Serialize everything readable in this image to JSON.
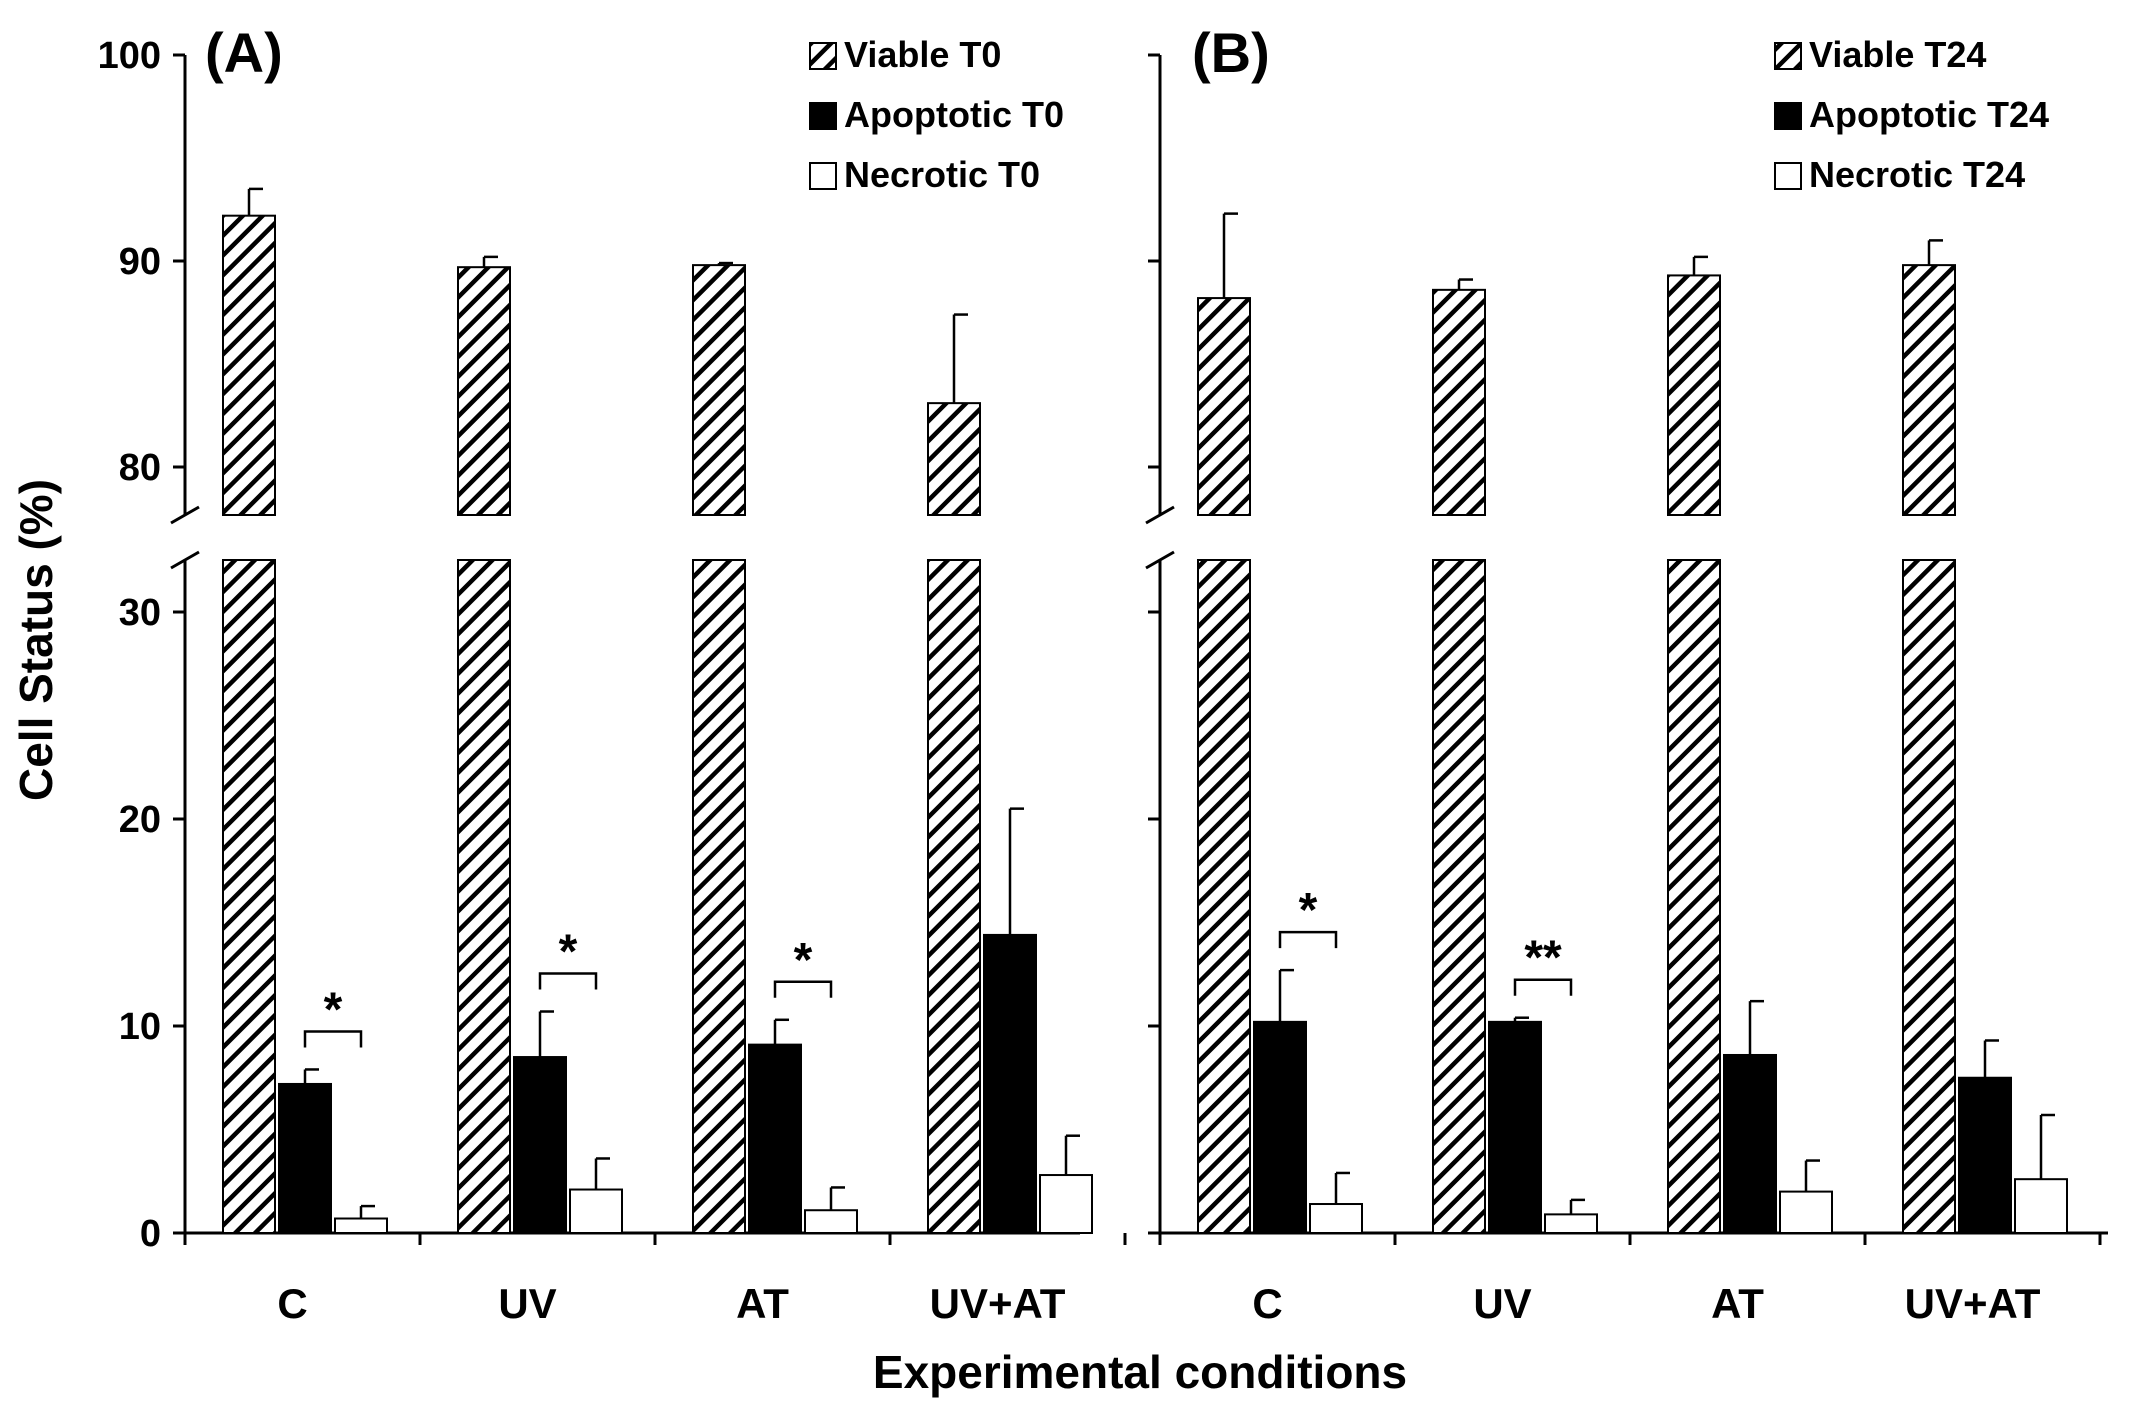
{
  "axes": {
    "ylabel": "Cell Status (%)",
    "xlabel": "Experimental conditions"
  },
  "colors": {
    "apoptotic": "#000000",
    "necrotic": "#ffffff",
    "viable_hatch": "#000000"
  },
  "chart_data": [
    {
      "type": "bar",
      "panel": "(A)",
      "categories": [
        "C",
        "UV",
        "AT",
        "UV+AT"
      ],
      "ylabel": "Cell Status (%)",
      "xlabel": "Experimental conditions",
      "y_break": {
        "lower": [
          0,
          32
        ],
        "upper": [
          77.5,
          100
        ]
      },
      "yticks": [
        "0",
        "10",
        "20",
        "30",
        "80",
        "90",
        "100"
      ],
      "legend_position": "top-right",
      "series": [
        {
          "name": "Viable T0",
          "pattern": "hatched",
          "values": [
            92.2,
            89.7,
            89.8,
            83.1
          ],
          "errors": [
            1.3,
            0.5,
            0.1,
            4.3
          ]
        },
        {
          "name": "Apoptotic T0",
          "pattern": "black",
          "values": [
            7.2,
            8.5,
            9.1,
            14.4
          ],
          "errors": [
            0.7,
            2.2,
            1.2,
            6.1
          ]
        },
        {
          "name": "Necrotic T0",
          "pattern": "white",
          "values": [
            0.7,
            2.1,
            1.1,
            2.8
          ],
          "errors": [
            0.6,
            1.5,
            1.1,
            1.9
          ]
        }
      ],
      "significance": [
        {
          "category": "C",
          "label": "*"
        },
        {
          "category": "UV",
          "label": "*"
        },
        {
          "category": "AT",
          "label": "*"
        }
      ]
    },
    {
      "type": "bar",
      "panel": "(B)",
      "categories": [
        "C",
        "UV",
        "AT",
        "UV+AT"
      ],
      "ylabel": "Cell Status (%)",
      "xlabel": "Experimental conditions",
      "y_break": {
        "lower": [
          0,
          32
        ],
        "upper": [
          77.5,
          100
        ]
      },
      "yticks": [
        "0",
        "10",
        "20",
        "30",
        "80",
        "90",
        "100"
      ],
      "legend_position": "top-right",
      "series": [
        {
          "name": "Viable T24",
          "pattern": "hatched",
          "values": [
            88.2,
            88.6,
            89.3,
            89.8
          ],
          "errors": [
            4.1,
            0.5,
            0.9,
            1.2
          ]
        },
        {
          "name": "Apoptotic T24",
          "pattern": "black",
          "values": [
            10.2,
            10.2,
            8.6,
            7.5
          ],
          "errors": [
            2.5,
            0.2,
            2.6,
            1.8
          ]
        },
        {
          "name": "Necrotic T24",
          "pattern": "white",
          "values": [
            1.4,
            0.9,
            2.0,
            2.6
          ],
          "errors": [
            1.5,
            0.7,
            1.5,
            3.1
          ]
        }
      ],
      "significance": [
        {
          "category": "C",
          "label": "*"
        },
        {
          "category": "UV",
          "label": "**"
        }
      ]
    }
  ]
}
